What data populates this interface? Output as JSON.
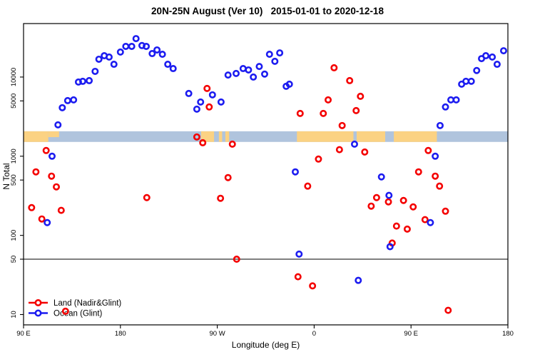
{
  "title": "20N-25N August (Ver 10)   2015-01-01 to 2020-12-18",
  "axes": {
    "y_label": "N Total",
    "x_label": "Longitude (deg E)"
  },
  "legend": {
    "items": [
      {
        "label": "Land (Nadir&Glint)",
        "color": "#f40000"
      },
      {
        "label": "Ocean (Glint)",
        "color": "#1c1cf0"
      }
    ]
  },
  "chart_data": {
    "type": "scatter",
    "title": "20N-25N August (Ver 10)   2015-01-01 to 2020-12-18",
    "xlabel": "Longitude (deg E)",
    "ylabel": "N Total",
    "x_axis_note": "longitude unwrapped eastward from 90E to 180 (second wrap)",
    "y_scale": "log",
    "xlim": [
      90,
      540
    ],
    "ylim": [
      7.4,
      47400
    ],
    "x_ticks": [
      {
        "value": 90,
        "label": "90 E"
      },
      {
        "value": 180,
        "label": "180"
      },
      {
        "value": 270,
        "label": "90 W"
      },
      {
        "value": 360,
        "label": "0"
      },
      {
        "value": 450,
        "label": "90 E"
      },
      {
        "value": 540,
        "label": "180"
      }
    ],
    "y_ticks": [
      {
        "value": 10000,
        "label": "10000"
      },
      {
        "value": 5000,
        "label": "5000"
      },
      {
        "value": 1000,
        "label": "1000"
      },
      {
        "value": 500,
        "label": "500"
      },
      {
        "value": 100,
        "label": "100"
      },
      {
        "value": 50,
        "label": "50"
      },
      {
        "value": 10,
        "label": "10"
      }
    ],
    "reference_line_y": 50,
    "map_strip": {
      "n_range": [
        1515,
        2065
      ],
      "ocean_color": "#b0c4dd",
      "land_color": "#fbd283",
      "land_segments_lon": [
        [
          90,
          113
        ],
        [
          255,
          267
        ],
        [
          271.5,
          274.5
        ],
        [
          277.5,
          281
        ],
        [
          344,
          396.5
        ],
        [
          399.5,
          426
        ],
        [
          434,
          474
        ]
      ],
      "land_top_half_segments_lon": [
        [
          113,
          123
        ]
      ]
    },
    "series": [
      {
        "name": "Land (Nadir&Glint)",
        "color": "#f40000",
        "points": [
          [
            111,
            1180
          ],
          [
            101.5,
            634
          ],
          [
            116,
            560
          ],
          [
            120.5,
            410
          ],
          [
            97.5,
            224
          ],
          [
            125,
            207
          ],
          [
            107,
            161
          ],
          [
            204.5,
            300
          ],
          [
            260.5,
            7180
          ],
          [
            262.5,
            4190
          ],
          [
            251,
            1750
          ],
          [
            256.5,
            1480
          ],
          [
            284,
            1420
          ],
          [
            280,
            537
          ],
          [
            273,
            294
          ],
          [
            288,
            50
          ],
          [
            345,
            30
          ],
          [
            358.5,
            23
          ],
          [
            364,
            920
          ],
          [
            354,
            419
          ],
          [
            347,
            3470
          ],
          [
            368.5,
            3470
          ],
          [
            373,
            5150
          ],
          [
            378.5,
            13100
          ],
          [
            386,
            2440
          ],
          [
            393,
            9010
          ],
          [
            399,
            3770
          ],
          [
            403,
            5710
          ],
          [
            383.5,
            1210
          ],
          [
            407,
            1130
          ],
          [
            466,
            1180
          ],
          [
            457,
            634
          ],
          [
            472.5,
            560
          ],
          [
            476.5,
            419
          ],
          [
            418,
            300
          ],
          [
            429,
            265
          ],
          [
            413,
            234
          ],
          [
            443,
            276
          ],
          [
            452,
            229
          ],
          [
            482,
            202
          ],
          [
            463,
            158
          ],
          [
            436.5,
            131
          ],
          [
            446.5,
            120
          ],
          [
            432.5,
            80
          ],
          [
            484.5,
            11.3
          ],
          [
            129,
            11
          ]
        ]
      },
      {
        "name": "Ocean (Glint)",
        "color": "#1c1cf0",
        "points": [
          [
            122,
            2490
          ],
          [
            126,
            4100
          ],
          [
            131,
            5040
          ],
          [
            136.5,
            5150
          ],
          [
            141,
            8650
          ],
          [
            145,
            8830
          ],
          [
            151,
            9010
          ],
          [
            156.5,
            11800
          ],
          [
            160,
            16800
          ],
          [
            165,
            18600
          ],
          [
            169.5,
            17900
          ],
          [
            174,
            14500
          ],
          [
            180,
            20700
          ],
          [
            185,
            24400
          ],
          [
            190.5,
            24400
          ],
          [
            194.5,
            30600
          ],
          [
            200,
            25000
          ],
          [
            204,
            24400
          ],
          [
            209.5,
            19800
          ],
          [
            214,
            22000
          ],
          [
            219,
            19400
          ],
          [
            224,
            14500
          ],
          [
            229,
            12800
          ],
          [
            243.5,
            6200
          ],
          [
            251,
            3930
          ],
          [
            254.5,
            4840
          ],
          [
            265.5,
            5960
          ],
          [
            273.5,
            4840
          ],
          [
            280,
            10600
          ],
          [
            287.5,
            11100
          ],
          [
            294,
            12800
          ],
          [
            299,
            12300
          ],
          [
            303.5,
            10000
          ],
          [
            309,
            13600
          ],
          [
            314,
            10900
          ],
          [
            318.5,
            19400
          ],
          [
            323.5,
            15800
          ],
          [
            328,
            20200
          ],
          [
            334,
            7640
          ],
          [
            337,
            8130
          ],
          [
            342.5,
            634
          ],
          [
            346,
            58
          ],
          [
            401,
            27
          ],
          [
            422.5,
            548
          ],
          [
            429.5,
            320
          ],
          [
            430.5,
            72
          ],
          [
            468,
            145
          ],
          [
            472.5,
            1000
          ],
          [
            477,
            2440
          ],
          [
            482,
            4190
          ],
          [
            487,
            5150
          ],
          [
            492,
            5150
          ],
          [
            497,
            8130
          ],
          [
            501,
            8840
          ],
          [
            506,
            8840
          ],
          [
            511,
            12100
          ],
          [
            515.5,
            17100
          ],
          [
            519.5,
            18600
          ],
          [
            525.5,
            17900
          ],
          [
            530,
            14500
          ],
          [
            536,
            21500
          ],
          [
            116.5,
            1000
          ],
          [
            112,
            145
          ],
          [
            397.5,
            1420
          ]
        ]
      }
    ]
  }
}
